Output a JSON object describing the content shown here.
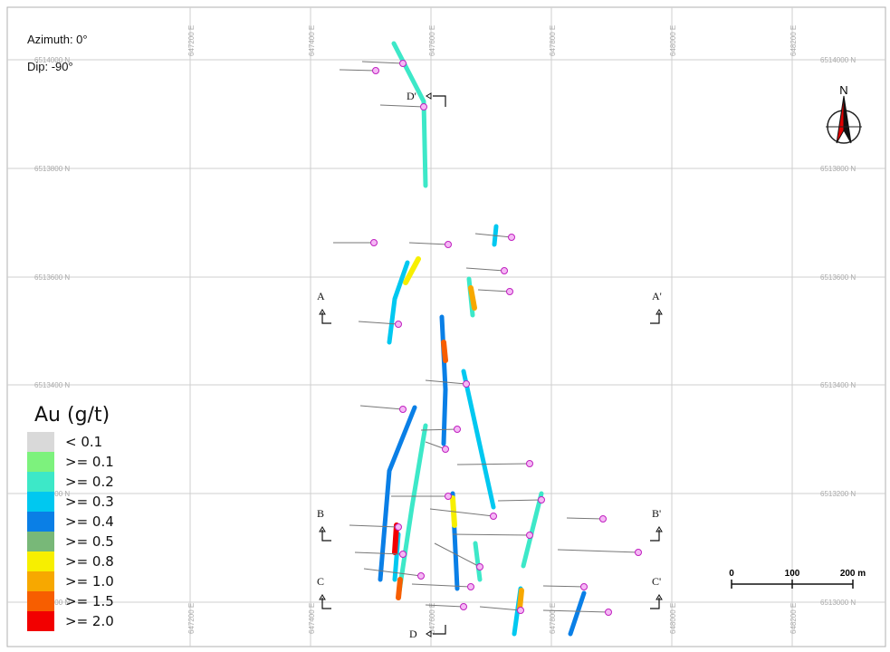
{
  "view": {
    "azimuth_label": "Azimuth: 0°",
    "dip_label": "Dip: -90°"
  },
  "north_arrow": {
    "label": "N"
  },
  "grid": {
    "eastings": [
      "647200 E",
      "647400 E",
      "647600 E",
      "647800 E",
      "648000 E",
      "648200 E"
    ],
    "northings": [
      "6514000 N",
      "6513800 N",
      "6513600 N",
      "6513400 N",
      "6513200 N",
      "6513000 N"
    ]
  },
  "sections": [
    {
      "start": "A",
      "end": "A'"
    },
    {
      "start": "B",
      "end": "B'"
    },
    {
      "start": "C",
      "end": "C'"
    },
    {
      "start": "D",
      "end": "D'"
    }
  ],
  "scale_bar": {
    "labels": [
      "0",
      "100",
      "200 m"
    ]
  },
  "legend": {
    "title": "Au (g/t)",
    "items": [
      {
        "label": "< 0.1",
        "color": "#d9d9d9"
      },
      {
        "label": ">= 0.1",
        "color": "#7df27d"
      },
      {
        "label": ">= 0.2",
        "color": "#3de8c8"
      },
      {
        "label": ">= 0.3",
        "color": "#00c8f0"
      },
      {
        "label": ">= 0.4",
        "color": "#0a7fe6"
      },
      {
        "label": ">= 0.5",
        "color": "#78b878"
      },
      {
        "label": ">= 0.8",
        "color": "#f7ef00"
      },
      {
        "label": ">= 1.0",
        "color": "#f7a800"
      },
      {
        "label": ">= 1.5",
        "color": "#f75e00"
      },
      {
        "label": ">= 2.0",
        "color": "#f20000"
      }
    ]
  }
}
